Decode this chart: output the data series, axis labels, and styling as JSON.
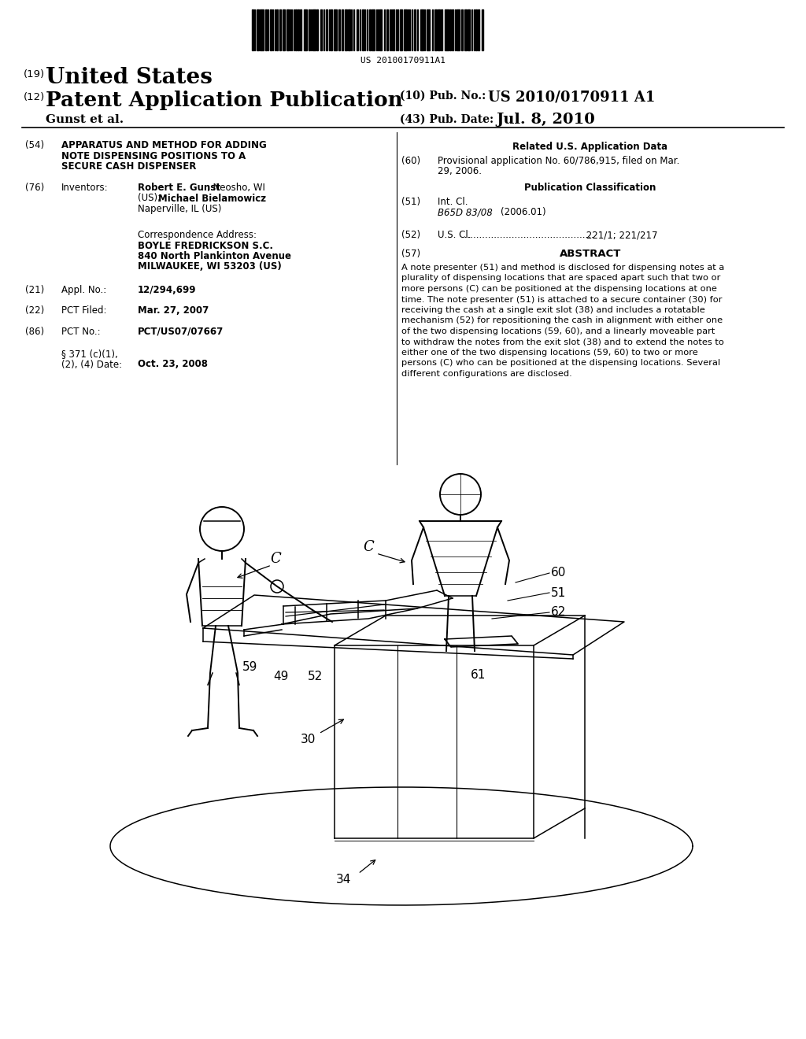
{
  "background_color": "#ffffff",
  "barcode_text": "US 20100170911A1",
  "header": {
    "country_label": "(19)",
    "country": "United States",
    "type_label": "(12)",
    "type": "Patent Application Publication",
    "pub_no_label": "(10) Pub. No.:",
    "pub_no": "US 2010/0170911 A1",
    "inventors_short": "Gunst et al.",
    "pub_date_label": "(43) Pub. Date:",
    "pub_date": "Jul. 8, 2010"
  },
  "left_col": {
    "title_num": "(54)",
    "title_line1": "APPARATUS AND METHOD FOR ADDING",
    "title_line2": "NOTE DISPENSING POSITIONS TO A",
    "title_line3": "SECURE CASH DISPENSER",
    "inventors_num": "(76)",
    "inventors_label": "Inventors:",
    "inv_name1": "Robert E. Gunst",
    "inv_loc1": ", Neosho, WI",
    "inv_line2": "(US); ",
    "inv_name2": "Michael Bielamowicz",
    "inv_line3": "Naperville, IL (US)",
    "corr_label": "Correspondence Address:",
    "corr_line1": "BOYLE FREDRICKSON S.C.",
    "corr_line2": "840 North Plankinton Avenue",
    "corr_line3": "MILWAUKEE, WI 53203 (US)",
    "appl_num": "(21)",
    "appl_label": "Appl. No.:",
    "appl_val": "12/294,699",
    "pct_filed_num": "(22)",
    "pct_filed_label": "PCT Filed:",
    "pct_filed_val": "Mar. 27, 2007",
    "pct_no_num": "(86)",
    "pct_no_label": "PCT No.:",
    "pct_no_val": "PCT/US07/07667",
    "section_label1": "§ 371 (c)(1),",
    "section_label2": "(2), (4) Date:",
    "section_val": "Oct. 23, 2008"
  },
  "right_col": {
    "related_header": "Related U.S. Application Data",
    "prov_num": "(60)",
    "prov_line1": "Provisional application No. 60/786,915, filed on Mar.",
    "prov_line2": "29, 2006.",
    "pub_class_header": "Publication Classification",
    "intcl_num": "(51)",
    "intcl_label": "Int. Cl.",
    "intcl_val": "B65D 83/08",
    "intcl_year": "(2006.01)",
    "uscl_num": "(52)",
    "uscl_label": "U.S. Cl.",
    "uscl_dots": " ............................................",
    "uscl_val": " 221/1; 221/217",
    "abstract_num": "(57)",
    "abstract_header": "ABSTRACT",
    "abstract_text": "A note presenter (51) and method is disclosed for dispensing notes at a plurality of dispensing locations that are spaced apart such that two or more persons (C) can be positioned at the dispensing locations at one time. The note presenter (51) is attached to a secure container (30) for receiving the cash at a single exit slot (38) and includes a rotatable mechanism (52) for repositioning the cash in alignment with either one of the two dispensing locations (59, 60), and a linearly moveable part to withdraw the notes from the exit slot (38) and to extend the notes to either one of the two dispensing locations (59, 60) to two or more persons (C) who can be positioned at the dispensing locations. Several different configurations are disclosed."
  }
}
